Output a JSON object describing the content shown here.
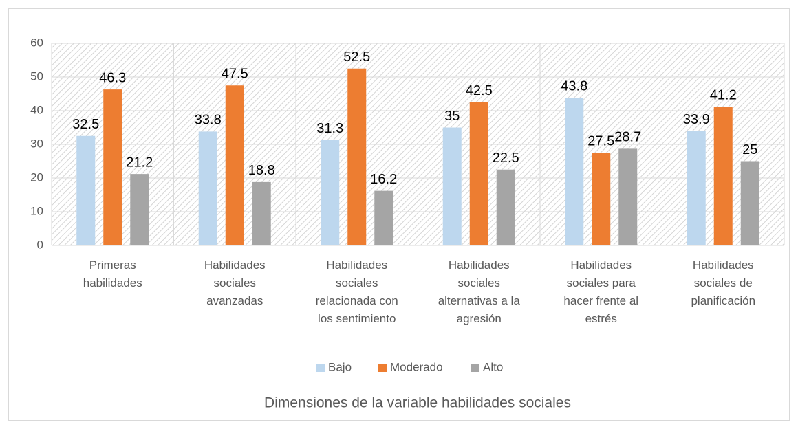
{
  "chart_data": {
    "type": "bar",
    "x_label": "Dimensiones de la variable habilidades sociales",
    "categories": [
      "Primeras habilidades",
      "Habilidades sociales avanzadas",
      "Habilidades sociales relacionada con los sentimiento",
      "Habilidades sociales alternativas a la agresión",
      "Habilidades sociales para hacer frente al estrés",
      "Habilidades sociales de planificación"
    ],
    "series": [
      {
        "name": "Bajo",
        "color": "#bdd7ee",
        "values": [
          32.5,
          33.8,
          31.3,
          35,
          43.8,
          33.9
        ]
      },
      {
        "name": "Moderado",
        "color": "#ed7d31",
        "values": [
          46.3,
          47.5,
          52.5,
          42.5,
          27.5,
          41.2
        ]
      },
      {
        "name": "Alto",
        "color": "#a5a5a5",
        "values": [
          21.2,
          18.8,
          16.2,
          22.5,
          28.7,
          25
        ]
      }
    ],
    "ylim": [
      0,
      60
    ],
    "yticks": [
      0,
      10,
      20,
      30,
      40,
      50,
      60
    ],
    "grid": true,
    "legend": "bottom"
  }
}
